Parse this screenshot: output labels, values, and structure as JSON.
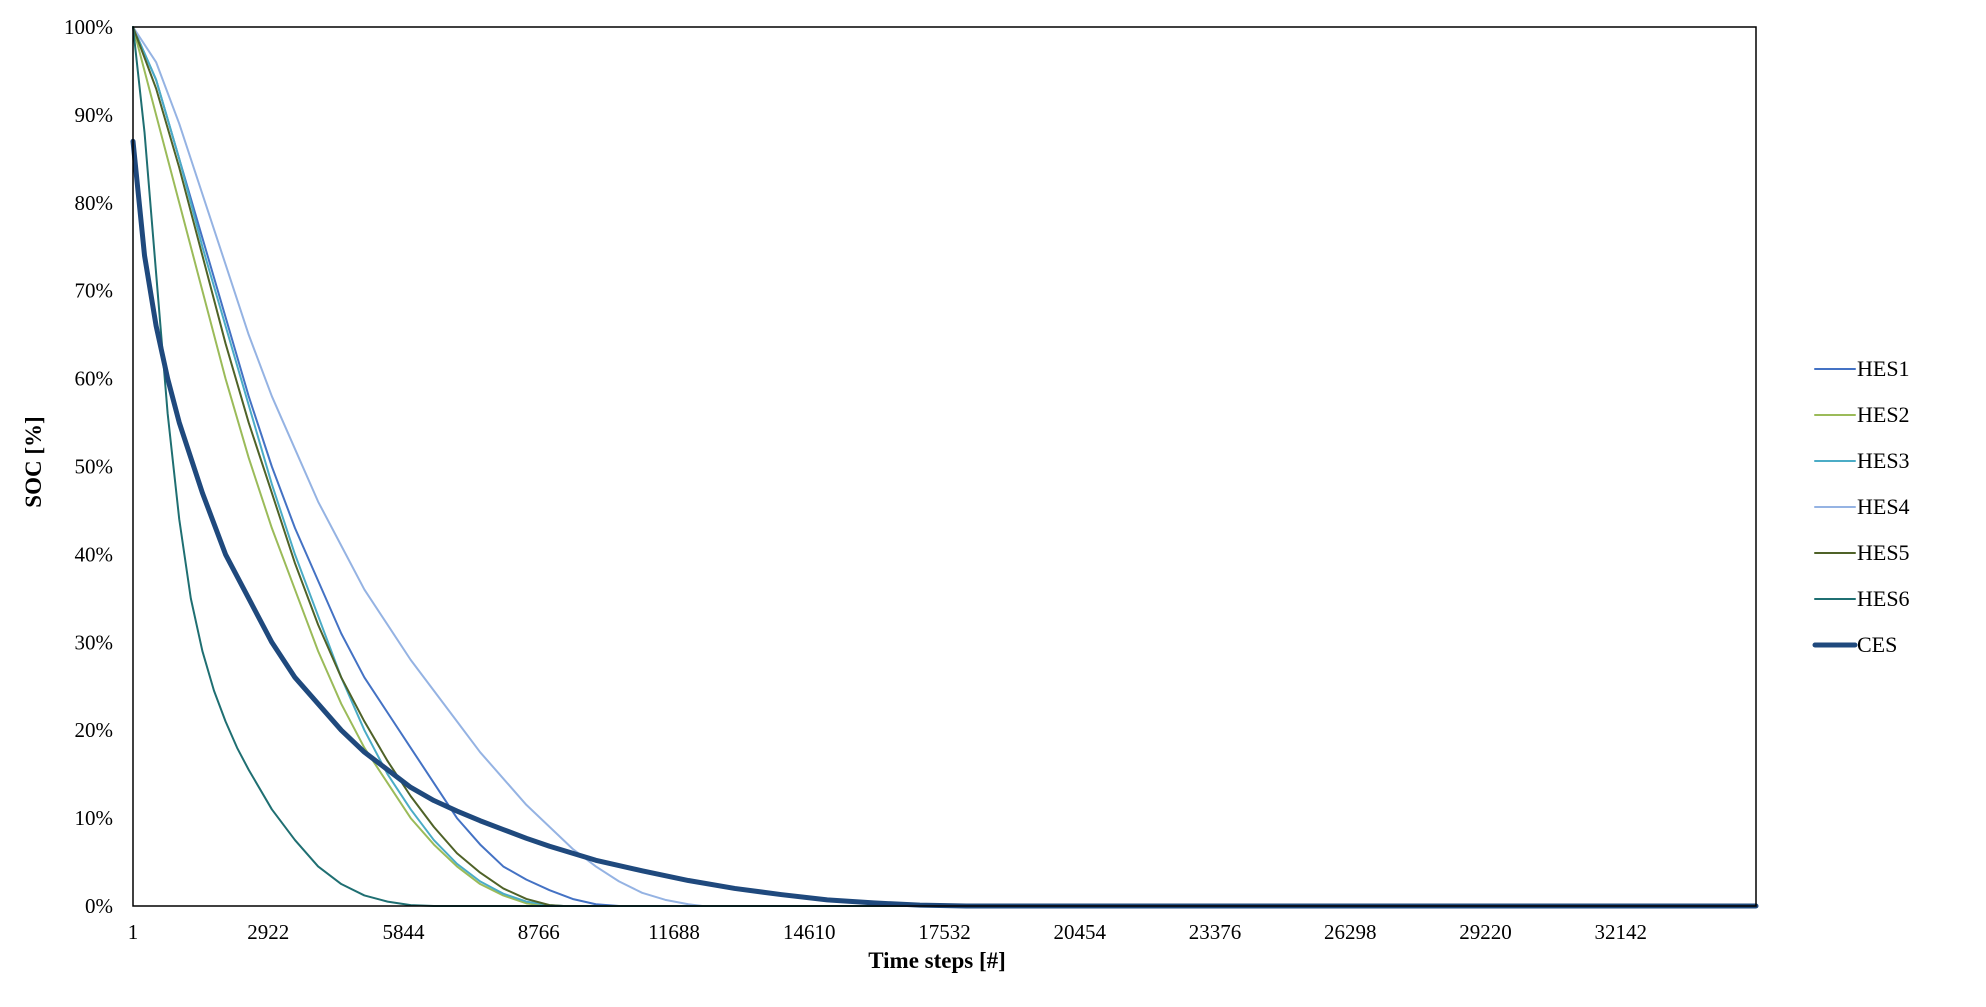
{
  "chart_data": {
    "type": "line",
    "xlabel": "Time steps [#]",
    "ylabel": "SOC [%]",
    "xlim": [
      1,
      35064
    ],
    "ylim": [
      0,
      100
    ],
    "x_ticks": [
      1,
      2922,
      5844,
      8766,
      11688,
      14610,
      17532,
      20454,
      23376,
      26298,
      29220,
      32142
    ],
    "x_tick_labels": [
      "1",
      "2922",
      "5844",
      "8766",
      "11688",
      "14610",
      "17532",
      "20454",
      "23376",
      "26298",
      "29220",
      "32142"
    ],
    "y_ticks": [
      0,
      10,
      20,
      30,
      40,
      50,
      60,
      70,
      80,
      90,
      100
    ],
    "y_tick_labels": [
      "0%",
      "10%",
      "20%",
      "30%",
      "40%",
      "50%",
      "60%",
      "70%",
      "80%",
      "90%",
      "100%"
    ],
    "grid": false,
    "legend_position": "right",
    "series": [
      {
        "name": "HES1",
        "color": "#4472c4",
        "width": 2,
        "x": [
          1,
          500,
          1000,
          1500,
          2000,
          2500,
          3000,
          3500,
          4000,
          4500,
          5000,
          5500,
          6000,
          6500,
          7000,
          7500,
          8000,
          8500,
          9000,
          9500,
          10000,
          10500,
          35064
        ],
        "y": [
          100,
          94,
          85,
          76,
          67,
          58,
          50,
          43,
          37,
          31,
          26,
          22,
          18,
          14,
          10,
          7,
          4.5,
          3,
          1.8,
          0.8,
          0.2,
          0,
          0
        ]
      },
      {
        "name": "HES2",
        "color": "#9bbb59",
        "width": 2,
        "x": [
          1,
          500,
          1000,
          1500,
          2000,
          2500,
          3000,
          3500,
          4000,
          4500,
          5000,
          5500,
          6000,
          6500,
          7000,
          7500,
          8000,
          8500,
          9000,
          35064
        ],
        "y": [
          100,
          90,
          80,
          70,
          60,
          51,
          43,
          36,
          29,
          23,
          18,
          14,
          10,
          7,
          4.5,
          2.5,
          1.2,
          0.3,
          0,
          0
        ]
      },
      {
        "name": "HES3",
        "color": "#4bacc6",
        "width": 2,
        "x": [
          1,
          500,
          1000,
          1500,
          2000,
          2500,
          3000,
          3500,
          4000,
          4500,
          5000,
          5500,
          6000,
          6500,
          7000,
          7500,
          8000,
          8500,
          9000,
          9300,
          35064
        ],
        "y": [
          100,
          94,
          85,
          75,
          66,
          57,
          48,
          40,
          33,
          26,
          20,
          15,
          11,
          7.5,
          4.8,
          2.8,
          1.4,
          0.5,
          0.1,
          0,
          0
        ]
      },
      {
        "name": "HES4",
        "color": "#95b3e3",
        "width": 2,
        "x": [
          1,
          500,
          1000,
          1500,
          2000,
          2500,
          3000,
          3500,
          4000,
          4500,
          5000,
          5500,
          6000,
          6500,
          7000,
          7500,
          8000,
          8500,
          9000,
          9500,
          10000,
          10500,
          11000,
          11500,
          12000,
          12300,
          35064
        ],
        "y": [
          100,
          96,
          89,
          81,
          73,
          65,
          58,
          52,
          46,
          41,
          36,
          32,
          28,
          24.5,
          21,
          17.5,
          14.5,
          11.5,
          9,
          6.5,
          4.5,
          2.8,
          1.5,
          0.7,
          0.2,
          0,
          0
        ]
      },
      {
        "name": "HES5",
        "color": "#4f6228",
        "width": 2,
        "x": [
          1,
          500,
          1000,
          1500,
          2000,
          2500,
          3000,
          3500,
          4000,
          4500,
          5000,
          5500,
          6000,
          6500,
          7000,
          7500,
          8000,
          8500,
          9000,
          9300,
          35064
        ],
        "y": [
          100,
          93,
          84,
          74,
          64,
          55,
          47,
          39,
          32,
          26,
          21,
          16.5,
          12.5,
          9,
          6,
          3.8,
          2,
          0.8,
          0.1,
          0,
          0
        ]
      },
      {
        "name": "HES6",
        "color": "#1f6f72",
        "width": 2,
        "x": [
          1,
          250,
          500,
          750,
          1000,
          1250,
          1500,
          1750,
          2000,
          2250,
          2500,
          3000,
          3500,
          4000,
          4500,
          5000,
          5500,
          6000,
          6500,
          7000,
          35064
        ],
        "y": [
          100,
          88,
          72,
          56,
          44,
          35,
          29,
          24.5,
          21,
          18,
          15.5,
          11,
          7.5,
          4.5,
          2.5,
          1.2,
          0.5,
          0.1,
          0,
          0,
          0
        ]
      },
      {
        "name": "CES",
        "color": "#1f497d",
        "width": 5,
        "x": [
          1,
          250,
          500,
          750,
          1000,
          1500,
          2000,
          2500,
          3000,
          3500,
          4000,
          4500,
          5000,
          5500,
          6000,
          6500,
          7000,
          7500,
          8000,
          8500,
          9000,
          9500,
          10000,
          11000,
          12000,
          13000,
          14000,
          15000,
          16000,
          17000,
          18000,
          19000,
          35064
        ],
        "y": [
          87,
          74,
          66,
          60,
          55,
          47,
          40,
          35,
          30,
          26,
          23,
          20,
          17.5,
          15.5,
          13.5,
          12,
          10.8,
          9.7,
          8.7,
          7.7,
          6.8,
          6,
          5.2,
          4,
          2.9,
          2,
          1.3,
          0.7,
          0.35,
          0.1,
          0,
          0,
          0
        ]
      }
    ]
  }
}
